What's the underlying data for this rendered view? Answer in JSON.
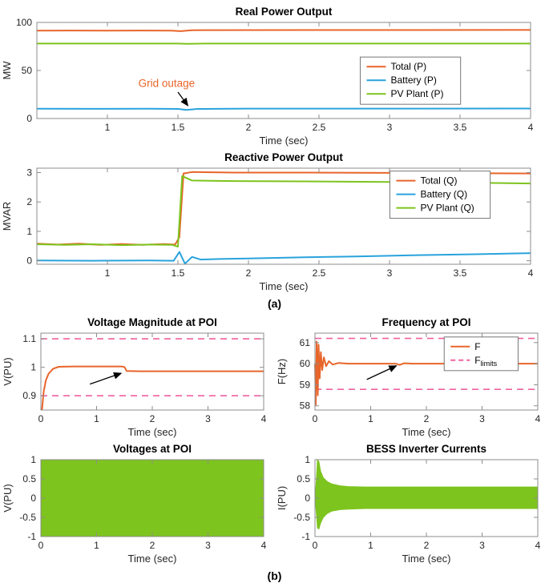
{
  "page": {
    "background": "#ffffff",
    "section_a_label": "(a)",
    "section_b_label": "(b)"
  },
  "colors": {
    "orange": "#E8652A",
    "blue": "#29A3DC",
    "green": "#7DC41E",
    "magenta": "#F0609E",
    "axis": "#8C8C8C",
    "text": "#262626"
  },
  "chart_data": [
    {
      "id": "real-power",
      "type": "line",
      "layout": "wide",
      "title": "Real Power Output",
      "xlabel": "Time (sec)",
      "ylabel": "MW",
      "xlim": [
        0.5,
        4
      ],
      "ylim": [
        0,
        100
      ],
      "xticks": [
        1,
        1.5,
        2,
        2.5,
        3,
        3.5,
        4
      ],
      "yticks": [
        0,
        50,
        100
      ],
      "grid": false,
      "legend": {
        "x": 0.655,
        "y": 0.36,
        "entries": [
          {
            "label": "Total (P)",
            "color": "orange"
          },
          {
            "label": "Battery (P)",
            "color": "blue"
          },
          {
            "label": "PV Plant (P)",
            "color": "green"
          }
        ]
      },
      "series": [
        {
          "name": "Total (P)",
          "color": "orange",
          "points": [
            [
              0.5,
              91.5
            ],
            [
              0.75,
              91.6
            ],
            [
              1.0,
              91.4
            ],
            [
              1.25,
              91.6
            ],
            [
              1.45,
              91.5
            ],
            [
              1.52,
              90.9
            ],
            [
              1.6,
              91.9
            ],
            [
              1.8,
              92.0
            ],
            [
              2.5,
              92.1
            ],
            [
              3.2,
              92.1
            ],
            [
              4,
              92.2
            ]
          ]
        },
        {
          "name": "Battery (P)",
          "color": "blue",
          "points": [
            [
              0.5,
              10.2
            ],
            [
              0.9,
              10.1
            ],
            [
              1.3,
              10.2
            ],
            [
              1.5,
              10.0
            ],
            [
              1.56,
              8.9
            ],
            [
              1.64,
              10.0
            ],
            [
              2,
              10.3
            ],
            [
              3,
              10.3
            ],
            [
              4,
              10.4
            ]
          ]
        },
        {
          "name": "PV Plant (P)",
          "color": "green",
          "points": [
            [
              0.5,
              78
            ],
            [
              1.5,
              78
            ],
            [
              1.56,
              77.7
            ],
            [
              1.7,
              78
            ],
            [
              4,
              78
            ]
          ]
        }
      ],
      "annotations": [
        {
          "type": "text",
          "x": 1.42,
          "y": 33,
          "text": "Grid outage",
          "color": "orange",
          "size": 13.5
        },
        {
          "type": "arrow",
          "x1": 1.5,
          "y1": 27.5,
          "x2": 1.57,
          "y2": 13.5
        }
      ]
    },
    {
      "id": "reactive-power",
      "type": "line",
      "layout": "wide",
      "title": "Reactive Power Output",
      "xlabel": "Time (sec)",
      "ylabel": "MVAR",
      "xlim": [
        0.5,
        4
      ],
      "ylim": [
        -0.12,
        3.15
      ],
      "xticks": [
        1,
        1.5,
        2,
        2.5,
        3,
        3.5,
        4
      ],
      "yticks": [
        0,
        1,
        2,
        3
      ],
      "grid": false,
      "legend": {
        "x": 0.715,
        "y": 0.03,
        "entries": [
          {
            "label": "Total (Q)",
            "color": "orange"
          },
          {
            "label": "Battery (Q)",
            "color": "blue"
          },
          {
            "label": "PV Plant (Q)",
            "color": "green"
          }
        ]
      },
      "series": [
        {
          "name": "Total (Q)",
          "color": "orange",
          "points": [
            [
              0.5,
              0.58
            ],
            [
              0.65,
              0.55
            ],
            [
              0.8,
              0.58
            ],
            [
              0.95,
              0.54
            ],
            [
              1.1,
              0.57
            ],
            [
              1.25,
              0.54
            ],
            [
              1.4,
              0.57
            ],
            [
              1.48,
              0.55
            ],
            [
              1.51,
              0.8
            ],
            [
              1.54,
              2.97
            ],
            [
              1.6,
              3.02
            ],
            [
              1.9,
              3.0
            ],
            [
              2.4,
              3.0
            ],
            [
              3.0,
              2.99
            ],
            [
              3.5,
              2.98
            ],
            [
              4,
              2.97
            ]
          ]
        },
        {
          "name": "Battery (Q)",
          "color": "blue",
          "points": [
            [
              0.5,
              0.01
            ],
            [
              0.9,
              0.0
            ],
            [
              1.3,
              0.01
            ],
            [
              1.47,
              0.0
            ],
            [
              1.51,
              0.3
            ],
            [
              1.55,
              -0.1
            ],
            [
              1.6,
              0.13
            ],
            [
              1.66,
              0.04
            ],
            [
              1.8,
              0.06
            ],
            [
              2.0,
              0.08
            ],
            [
              2.4,
              0.12
            ],
            [
              2.8,
              0.15
            ],
            [
              3.2,
              0.19
            ],
            [
              3.6,
              0.22
            ],
            [
              4,
              0.26
            ]
          ]
        },
        {
          "name": "PV Plant (Q)",
          "color": "green",
          "points": [
            [
              0.5,
              0.56
            ],
            [
              0.7,
              0.54
            ],
            [
              0.9,
              0.56
            ],
            [
              1.1,
              0.53
            ],
            [
              1.3,
              0.55
            ],
            [
              1.46,
              0.54
            ],
            [
              1.5,
              0.48
            ],
            [
              1.53,
              2.88
            ],
            [
              1.6,
              2.73
            ],
            [
              1.9,
              2.71
            ],
            [
              2.4,
              2.7
            ],
            [
              3.0,
              2.68
            ],
            [
              3.5,
              2.66
            ],
            [
              4,
              2.63
            ]
          ]
        }
      ],
      "annotations": []
    },
    {
      "id": "voltage-magnitude",
      "type": "line",
      "layout": "half",
      "title": "Voltage Magnitude at POI",
      "xlabel": "Time (sec)",
      "ylabel": "V(PU)",
      "xlim": [
        0,
        4
      ],
      "ylim": [
        0.85,
        1.12
      ],
      "xticks": [
        0,
        1,
        2,
        3,
        4
      ],
      "yticks": [
        0.9,
        1,
        1.1
      ],
      "grid": false,
      "series": [
        {
          "name": "V",
          "color": "orange",
          "points": [
            [
              0.02,
              0.85
            ],
            [
              0.05,
              0.915
            ],
            [
              0.09,
              0.955
            ],
            [
              0.14,
              0.978
            ],
            [
              0.22,
              0.995
            ],
            [
              0.32,
              1.002
            ],
            [
              0.6,
              1.003
            ],
            [
              1.0,
              1.003
            ],
            [
              1.45,
              1.003
            ],
            [
              1.5,
              1.001
            ],
            [
              1.54,
              0.987
            ],
            [
              1.8,
              0.986
            ],
            [
              2.5,
              0.986
            ],
            [
              3.2,
              0.986
            ],
            [
              4,
              0.986
            ]
          ]
        },
        {
          "name": "upper voltage limit",
          "color": "magenta",
          "dash": true,
          "width": 1.6,
          "points": [
            [
              0,
              1.1
            ],
            [
              4,
              1.1
            ]
          ]
        },
        {
          "name": "lower voltage limit",
          "color": "magenta",
          "dash": true,
          "width": 1.6,
          "points": [
            [
              0,
              0.9
            ],
            [
              4,
              0.9
            ]
          ]
        }
      ],
      "annotations": [
        {
          "type": "arrow",
          "x1": 0.88,
          "y1": 0.941,
          "x2": 1.44,
          "y2": 0.979
        }
      ]
    },
    {
      "id": "frequency",
      "type": "line",
      "layout": "half",
      "title": "Frequency at POI",
      "xlabel": "Time (sec)",
      "ylabel": "F(Hz)",
      "xlim": [
        0,
        4
      ],
      "ylim": [
        57.8,
        61.45
      ],
      "xticks": [
        0,
        1,
        2,
        3,
        4
      ],
      "yticks": [
        58,
        59,
        60,
        61
      ],
      "grid": false,
      "legend": {
        "x": 0.58,
        "y": 0.05,
        "entries": [
          {
            "label": "F",
            "color": "orange"
          },
          {
            "label": "F",
            "sub": "limits",
            "color": "magenta",
            "dash": true
          }
        ]
      },
      "series": [
        {
          "name": "upper frequency limit",
          "color": "magenta",
          "dash": true,
          "width": 1.6,
          "points": [
            [
              0,
              61.2
            ],
            [
              4,
              61.2
            ]
          ]
        },
        {
          "name": "lower frequency limit",
          "color": "magenta",
          "dash": true,
          "width": 1.6,
          "points": [
            [
              0,
              58.78
            ],
            [
              4,
              58.78
            ]
          ]
        },
        {
          "name": "F",
          "color": "orange",
          "points": [
            [
              0,
              60.0
            ],
            [
              0.015,
              58.05
            ],
            [
              0.03,
              61.05
            ],
            [
              0.05,
              58.5
            ],
            [
              0.065,
              60.9
            ],
            [
              0.085,
              59.3
            ],
            [
              0.105,
              60.55
            ],
            [
              0.13,
              59.7
            ],
            [
              0.16,
              60.3
            ],
            [
              0.2,
              59.88
            ],
            [
              0.25,
              60.12
            ],
            [
              0.32,
              59.96
            ],
            [
              0.42,
              60.03
            ],
            [
              0.6,
              60.0
            ],
            [
              1.0,
              60.0
            ],
            [
              1.45,
              60.0
            ],
            [
              1.52,
              59.94
            ],
            [
              1.6,
              60.02
            ],
            [
              1.75,
              60.0
            ],
            [
              4,
              60.0
            ]
          ]
        }
      ],
      "annotations": [
        {
          "type": "arrow",
          "x1": 0.93,
          "y1": 59.25,
          "x2": 1.46,
          "y2": 59.9
        }
      ]
    },
    {
      "id": "voltages-poi",
      "type": "area",
      "layout": "half",
      "title": "Voltages at POI",
      "xlabel": "Time (sec)",
      "ylabel": "V(PU)",
      "xlim": [
        0,
        4
      ],
      "ylim": [
        -1,
        1
      ],
      "xticks": [
        0,
        1,
        2,
        3,
        4
      ],
      "yticks": [
        -1,
        -0.5,
        0,
        0.5,
        1
      ],
      "grid": false,
      "series": [
        {
          "name": "three-phase voltage envelope",
          "color": "green",
          "band": true,
          "points": [
            [
              0,
              -1,
              1
            ],
            [
              4,
              -1,
              1
            ]
          ]
        }
      ],
      "annotations": []
    },
    {
      "id": "bess-currents",
      "type": "area",
      "layout": "half",
      "title": "BESS Inverter Currents",
      "xlabel": "Time (sec)",
      "ylabel": "I(PU)",
      "xlim": [
        0,
        4
      ],
      "ylim": [
        -1,
        1
      ],
      "xticks": [
        0,
        1,
        2,
        3,
        4
      ],
      "yticks": [
        -1,
        -0.5,
        0,
        0.5,
        1
      ],
      "grid": false,
      "series": [
        {
          "name": "inverter current envelope",
          "color": "green",
          "band": true,
          "points": [
            [
              0,
              -0.03,
              0.03
            ],
            [
              0.02,
              -0.3,
              0.35
            ],
            [
              0.045,
              -0.78,
              1.0
            ],
            [
              0.07,
              -0.8,
              0.95
            ],
            [
              0.1,
              -0.65,
              0.7
            ],
            [
              0.15,
              -0.5,
              0.53
            ],
            [
              0.22,
              -0.4,
              0.43
            ],
            [
              0.3,
              -0.34,
              0.37
            ],
            [
              0.45,
              -0.3,
              0.32
            ],
            [
              0.6,
              -0.285,
              0.3
            ],
            [
              0.9,
              -0.27,
              0.29
            ],
            [
              1.5,
              -0.27,
              0.29
            ],
            [
              2.5,
              -0.27,
              0.29
            ],
            [
              4,
              -0.27,
              0.29
            ]
          ]
        }
      ],
      "annotations": []
    }
  ]
}
